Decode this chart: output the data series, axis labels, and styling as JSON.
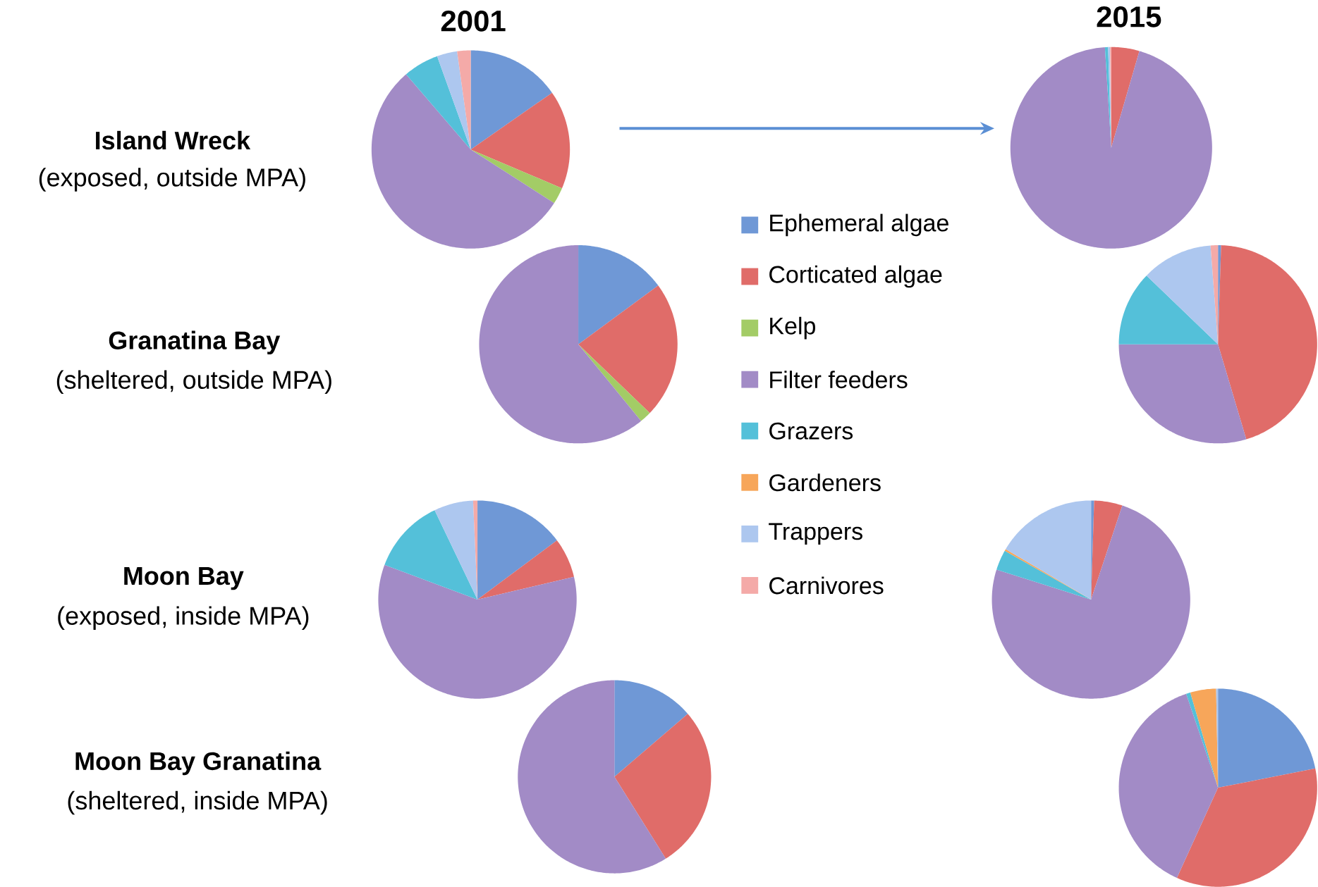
{
  "chart_data": [
    {
      "type": "pie",
      "title": "2001",
      "ylabel": "Island Wreck",
      "annotations": [
        "(exposed, outside MPA)"
      ],
      "values": [
        15.3,
        16.1,
        2.7,
        54.6,
        5.8,
        0,
        3.3,
        2.2
      ],
      "colors": [
        "#6f98d6",
        "#e06c69",
        "#a3cc66",
        "#a28bc6",
        "#54c0d9",
        "#f7a65a",
        "#adc7ef",
        "#f4aaa8"
      ]
    },
    {
      "type": "pie",
      "title": "2015",
      "values": [
        0,
        4.5,
        0,
        94.5,
        0.5,
        0,
        0.3,
        0.2
      ],
      "colors": [
        "#6f98d6",
        "#e06c69",
        "#a3cc66",
        "#a28bc6",
        "#54c0d9",
        "#f7a65a",
        "#adc7ef",
        "#f4aaa8"
      ]
    },
    {
      "type": "pie",
      "ylabel": "Granatina Bay",
      "annotations": [
        "(sheltered, outside MPA)"
      ],
      "values": [
        14.9,
        22.3,
        1.9,
        60.9,
        0,
        0,
        0,
        0
      ],
      "colors": [
        "#6f98d6",
        "#e06c69",
        "#a3cc66",
        "#a28bc6",
        "#54c0d9",
        "#f7a65a",
        "#adc7ef",
        "#f4aaa8"
      ]
    },
    {
      "type": "pie",
      "legend": "left",
      "categories": [
        "Ephemeral algae",
        "Corticated algae",
        "Kelp",
        "Filter feeders",
        "Grazers",
        "Gardeners",
        "Trappers",
        "Carnivores"
      ],
      "values": [
        0.5,
        44.9,
        0,
        29.6,
        12.2,
        0,
        11.6,
        1.2
      ],
      "colors": [
        "#6f98d6",
        "#e06c69",
        "#a3cc66",
        "#a28bc6",
        "#54c0d9",
        "#f7a65a",
        "#adc7ef",
        "#f4aaa8"
      ]
    },
    {
      "type": "pie",
      "ylabel": "Moon Bay",
      "annotations": [
        "(exposed, inside MPA)"
      ],
      "values": [
        14.8,
        6.5,
        0,
        59.4,
        12.2,
        0,
        6.4,
        0.7
      ],
      "colors": [
        "#6f98d6",
        "#e06c69",
        "#a3cc66",
        "#a28bc6",
        "#54c0d9",
        "#f7a65a",
        "#adc7ef",
        "#f4aaa8"
      ]
    },
    {
      "type": "pie",
      "values": [
        0.5,
        4.6,
        0,
        74.8,
        3.3,
        0.3,
        16.5,
        0
      ],
      "colors": [
        "#6f98d6",
        "#e06c69",
        "#a3cc66",
        "#a28bc6",
        "#54c0d9",
        "#f7a65a",
        "#adc7ef",
        "#f4aaa8"
      ]
    },
    {
      "type": "pie",
      "ylabel": "Moon Bay Granatina",
      "annotations": [
        "(sheltered, inside MPA)"
      ],
      "values": [
        13.7,
        27.4,
        0,
        58.9,
        0,
        0,
        0,
        0
      ],
      "colors": [
        "#6f98d6",
        "#e06c69",
        "#a3cc66",
        "#a28bc6",
        "#54c0d9",
        "#f7a65a",
        "#adc7ef",
        "#f4aaa8"
      ]
    },
    {
      "type": "pie",
      "values": [
        21.9,
        34.9,
        0,
        38,
        0.7,
        4.2,
        0.3,
        0
      ],
      "colors": [
        "#6f98d6",
        "#e06c69",
        "#a3cc66",
        "#a28bc6",
        "#54c0d9",
        "#f7a65a",
        "#adc7ef",
        "#f4aaa8"
      ]
    }
  ]
}
